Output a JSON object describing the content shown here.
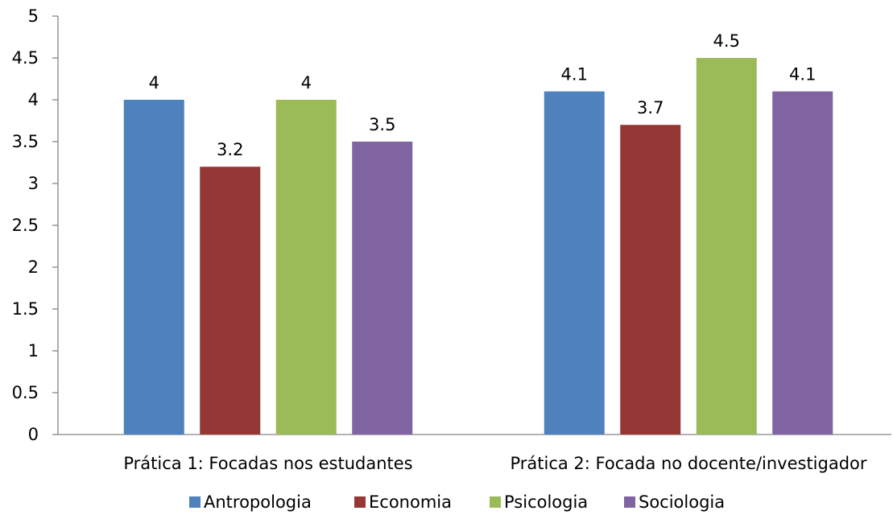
{
  "chart_data": {
    "type": "bar",
    "categories": [
      "Prática 1: Focadas nos estudantes",
      "Prática 2: Focada no docente/investigador"
    ],
    "series": [
      {
        "name": "Antropologia",
        "values": [
          4,
          4.1
        ],
        "color": "#4F81BD"
      },
      {
        "name": "Economia",
        "values": [
          3.2,
          3.7
        ],
        "color": "#953735"
      },
      {
        "name": "Psicologia",
        "values": [
          4,
          4.5
        ],
        "color": "#9BBB59"
      },
      {
        "name": "Sociologia",
        "values": [
          3.5,
          4.1
        ],
        "color": "#8064A2"
      }
    ],
    "yticks": [
      "0",
      "0.5",
      "1",
      "1.5",
      "2",
      "2.5",
      "3",
      "3.5",
      "4",
      "4.5",
      "5"
    ],
    "ylim": [
      0,
      5
    ],
    "grid": false,
    "legend_position": "bottom",
    "data_labels": true
  }
}
